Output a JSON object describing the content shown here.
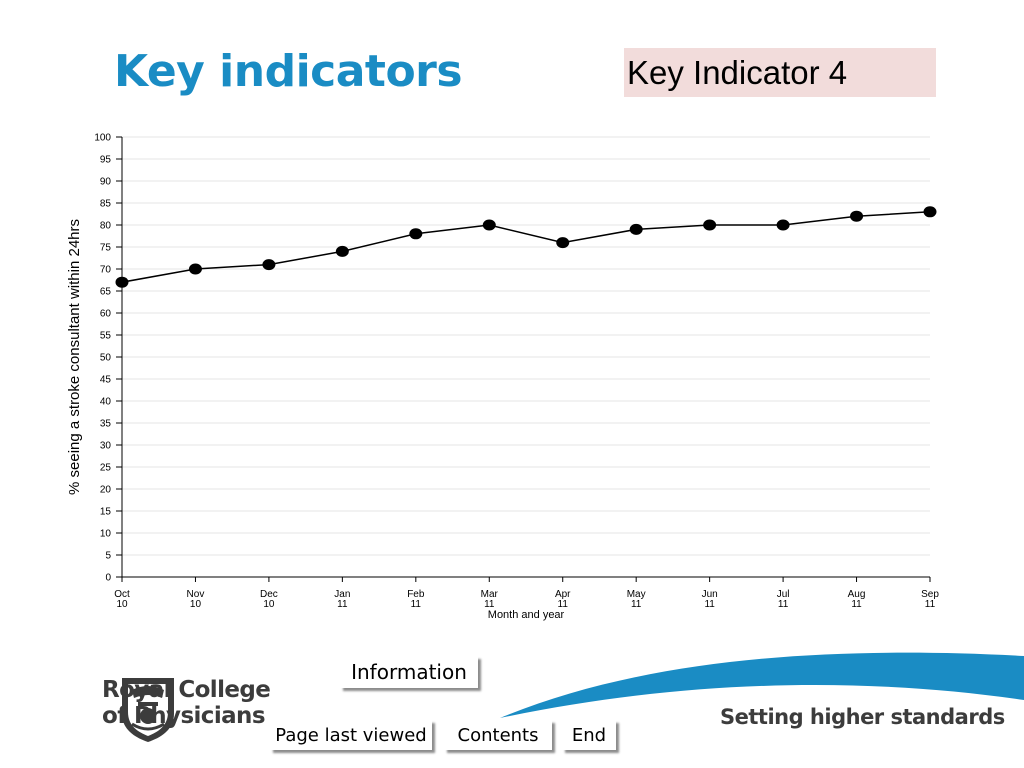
{
  "slide": {
    "title": "Key indicators",
    "indicator_label": "Key Indicator 4"
  },
  "chart_data": {
    "type": "line",
    "title": "",
    "xlabel": "Month and year",
    "ylabel": "% seeing a stroke consultant within 24hrs",
    "ylim": [
      0,
      100
    ],
    "ytick_step": 5,
    "grid": true,
    "categories": [
      [
        "Oct",
        "10"
      ],
      [
        "Nov",
        "10"
      ],
      [
        "Dec",
        "10"
      ],
      [
        "Jan",
        "11"
      ],
      [
        "Feb",
        "11"
      ],
      [
        "Mar",
        "11"
      ],
      [
        "Apr",
        "11"
      ],
      [
        "May",
        "11"
      ],
      [
        "Jun",
        "11"
      ],
      [
        "Jul",
        "11"
      ],
      [
        "Aug",
        "11"
      ],
      [
        "Sep",
        "11"
      ]
    ],
    "values": [
      67,
      70,
      71,
      74,
      78,
      80,
      76,
      79,
      80,
      80,
      82,
      83
    ],
    "line_color": "#000000",
    "grid_color": "#e6e6e6"
  },
  "nav": {
    "information_label": "Information",
    "page_last_viewed_label": "Page last viewed",
    "contents_label": "Contents",
    "end_label": "End"
  },
  "footer": {
    "org_line1": "Royal College",
    "org_line2": "of Physicians",
    "tagline": "Setting higher standards",
    "swoosh_color": "#1a8cc4"
  }
}
